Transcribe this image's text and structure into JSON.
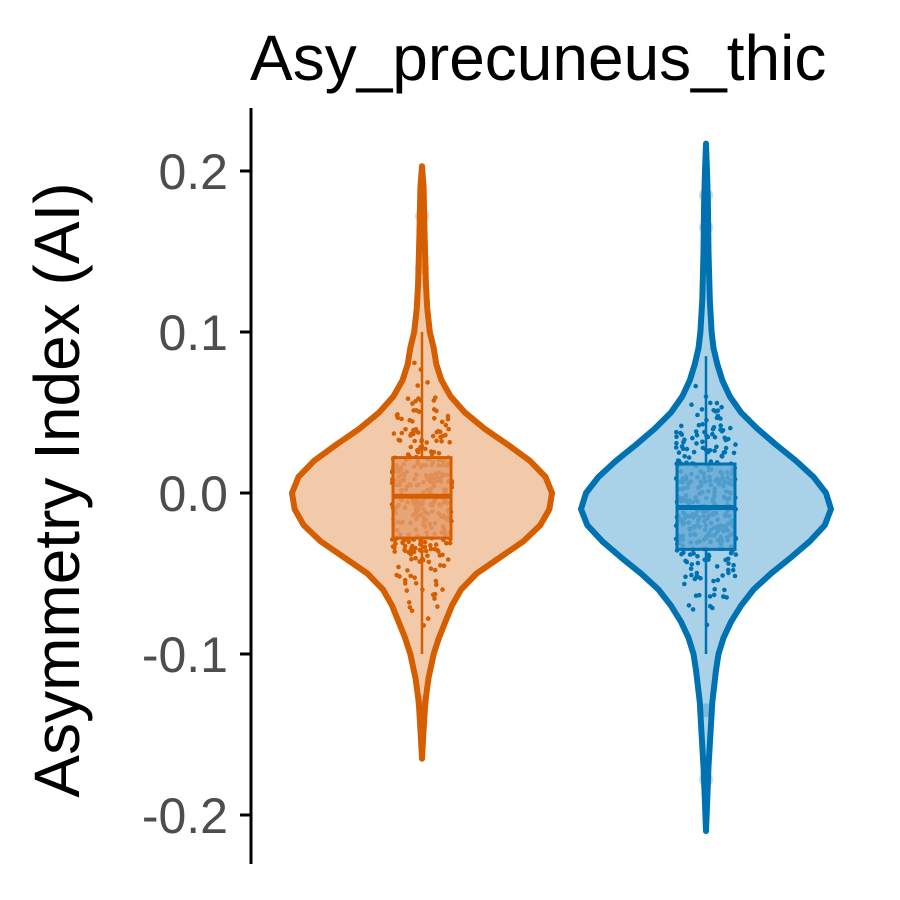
{
  "chart_data": {
    "type": "violin",
    "title": "Asy_precuneus_thic",
    "ylabel": "Asymmetry Index (AI)",
    "xlabel": "",
    "ylim": [
      -0.23,
      0.24
    ],
    "yticks": [
      {
        "value": 0.2,
        "label": "0.2"
      },
      {
        "value": 0.1,
        "label": "0.1"
      },
      {
        "value": 0.0,
        "label": "0.0"
      },
      {
        "value": -0.1,
        "label": "-0.1"
      },
      {
        "value": -0.2,
        "label": "-0.2"
      }
    ],
    "grid": false,
    "series": [
      {
        "color": "#D55E00",
        "fill": "#F2CAA9",
        "box_fill": "#E49B6A",
        "min": -0.165,
        "max": 0.203,
        "q1": -0.028,
        "median": -0.002,
        "q3": 0.022,
        "whisker_low": -0.1,
        "whisker_high": 0.1,
        "density": [
          [
            -0.165,
            0.0
          ],
          [
            -0.15,
            0.01
          ],
          [
            -0.13,
            0.025
          ],
          [
            -0.115,
            0.05
          ],
          [
            -0.1,
            0.09
          ],
          [
            -0.09,
            0.13
          ],
          [
            -0.08,
            0.18
          ],
          [
            -0.07,
            0.23
          ],
          [
            -0.06,
            0.3
          ],
          [
            -0.05,
            0.42
          ],
          [
            -0.04,
            0.6
          ],
          [
            -0.03,
            0.78
          ],
          [
            -0.02,
            0.91
          ],
          [
            -0.01,
            0.98
          ],
          [
            0.0,
            1.0
          ],
          [
            0.01,
            0.95
          ],
          [
            0.02,
            0.83
          ],
          [
            0.03,
            0.66
          ],
          [
            0.04,
            0.48
          ],
          [
            0.05,
            0.33
          ],
          [
            0.06,
            0.22
          ],
          [
            0.07,
            0.15
          ],
          [
            0.08,
            0.11
          ],
          [
            0.09,
            0.09
          ],
          [
            0.1,
            0.06
          ],
          [
            0.115,
            0.04
          ],
          [
            0.13,
            0.03
          ],
          [
            0.16,
            0.02
          ],
          [
            0.19,
            0.012
          ],
          [
            0.203,
            0.0
          ]
        ],
        "outliers": [
          0.172,
          0.14,
          -0.13
        ]
      },
      {
        "color": "#0072B2",
        "fill": "#A9D1E8",
        "box_fill": "#63A7D3",
        "min": -0.21,
        "max": 0.217,
        "q1": -0.035,
        "median": -0.009,
        "q3": 0.018,
        "whisker_low": -0.1,
        "whisker_high": 0.085,
        "density": [
          [
            -0.21,
            0.0
          ],
          [
            -0.19,
            0.01
          ],
          [
            -0.17,
            0.02
          ],
          [
            -0.15,
            0.035
          ],
          [
            -0.13,
            0.05
          ],
          [
            -0.11,
            0.08
          ],
          [
            -0.1,
            0.1
          ],
          [
            -0.09,
            0.14
          ],
          [
            -0.08,
            0.2
          ],
          [
            -0.07,
            0.28
          ],
          [
            -0.06,
            0.38
          ],
          [
            -0.05,
            0.52
          ],
          [
            -0.04,
            0.68
          ],
          [
            -0.03,
            0.83
          ],
          [
            -0.02,
            0.95
          ],
          [
            -0.01,
            1.0
          ],
          [
            0.0,
            0.96
          ],
          [
            0.01,
            0.86
          ],
          [
            0.02,
            0.72
          ],
          [
            0.03,
            0.56
          ],
          [
            0.04,
            0.41
          ],
          [
            0.05,
            0.28
          ],
          [
            0.06,
            0.19
          ],
          [
            0.07,
            0.13
          ],
          [
            0.08,
            0.09
          ],
          [
            0.09,
            0.06
          ],
          [
            0.1,
            0.045
          ],
          [
            0.12,
            0.03
          ],
          [
            0.15,
            0.02
          ],
          [
            0.18,
            0.015
          ],
          [
            0.2,
            0.008
          ],
          [
            0.217,
            0.0
          ]
        ],
        "outliers": [
          0.185,
          0.165,
          -0.178,
          -0.135
        ]
      }
    ]
  }
}
